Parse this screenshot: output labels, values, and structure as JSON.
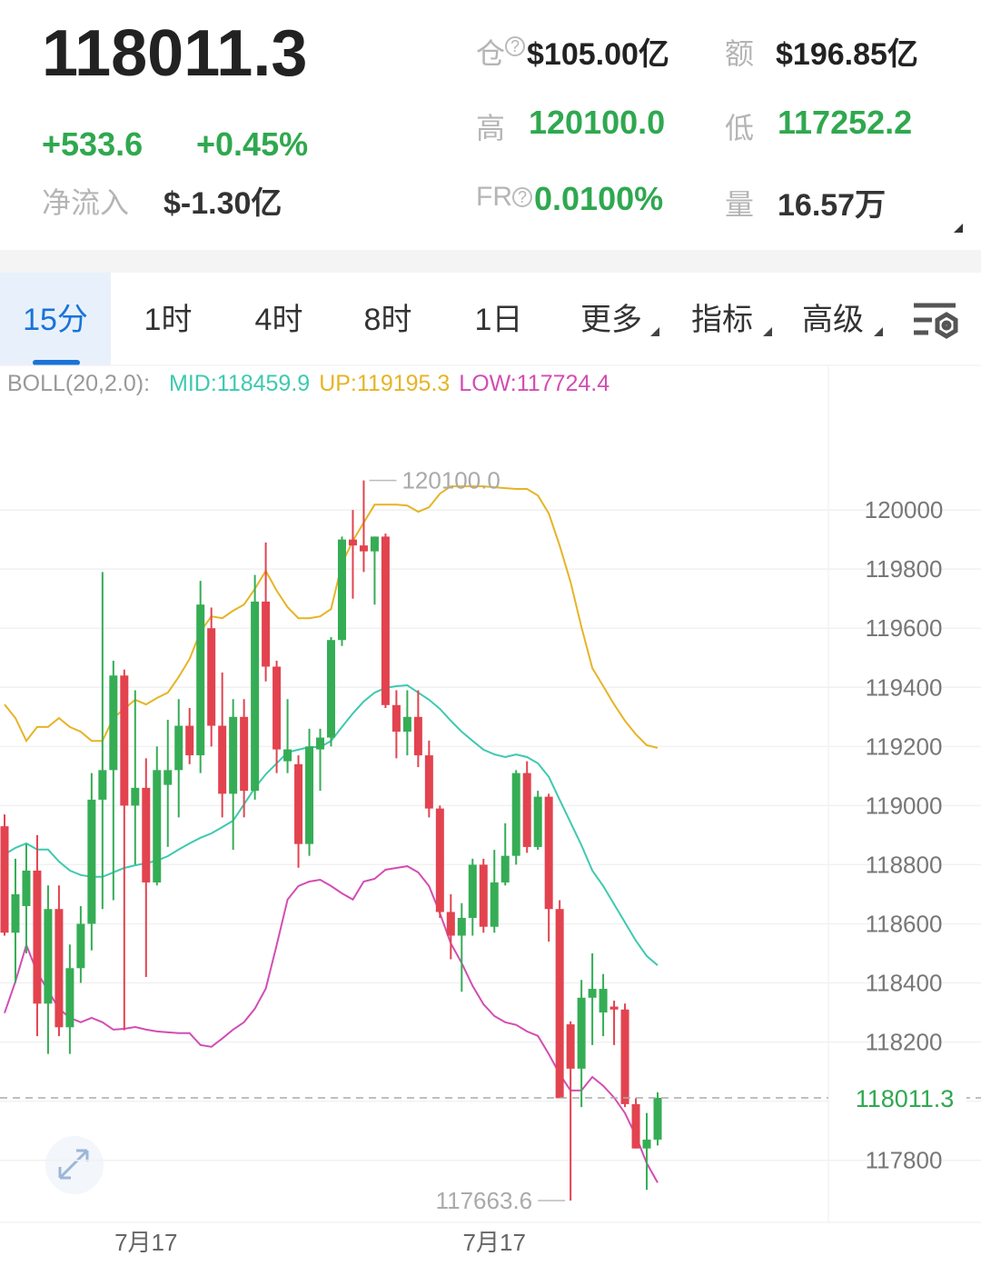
{
  "header": {
    "price": "118011.3",
    "change": "+533.6",
    "change_pct": "+0.45%",
    "inflow_label": "净流入",
    "inflow": "$-1.30亿",
    "stats": [
      {
        "label": "仓",
        "value": "$105.00亿"
      },
      {
        "label": "额",
        "value": "$196.85亿"
      },
      {
        "label": "高",
        "value": "120100.0"
      },
      {
        "label": "低",
        "value": "117252.2"
      },
      {
        "label": "FR",
        "value": "0.0100%"
      },
      {
        "label": "量",
        "value": "16.57万"
      }
    ]
  },
  "tabs": [
    "15分",
    "1时",
    "4时",
    "8时",
    "1日",
    "更多",
    "指标",
    "高级"
  ],
  "chart_data": {
    "type": "candlestick",
    "categories": [
      null,
      null,
      null,
      null,
      null,
      null,
      null,
      null,
      null,
      null,
      null,
      null,
      null,
      "7月17",
      null,
      null,
      null,
      null,
      null,
      null,
      null,
      null,
      null,
      null,
      null,
      null,
      null,
      null,
      null,
      null,
      null,
      null,
      null,
      null,
      null,
      null,
      null,
      null,
      null,
      null,
      null,
      null,
      null,
      null,
      null,
      "7月17",
      null,
      null,
      null,
      null,
      null,
      null,
      null,
      null,
      null,
      null,
      null,
      null,
      null,
      null,
      null
    ],
    "open": [
      118930,
      118570,
      118660,
      118780,
      118330,
      118650,
      118250,
      118450,
      118600,
      119020,
      119120,
      119440,
      119000,
      119060,
      118740,
      119070,
      119120,
      119270,
      119170,
      119600,
      119270,
      119040,
      119300,
      119050,
      119690,
      119470,
      119150,
      119140,
      118870,
      119190,
      119230,
      119560,
      119900,
      119880,
      119860,
      119910,
      119340,
      119250,
      119300,
      119170,
      118990,
      118640,
      118560,
      118620,
      118800,
      118590,
      118740,
      118830,
      119110,
      118860,
      119030,
      118650,
      118260,
      118110,
      118350,
      118300,
      118320,
      118310,
      117990,
      117840,
      117870
    ],
    "high": [
      118970,
      118820,
      118870,
      118900,
      118730,
      118730,
      118530,
      118660,
      119110,
      119790,
      119490,
      119460,
      119390,
      119160,
      119200,
      119290,
      119360,
      119330,
      119760,
      119670,
      119450,
      119360,
      119360,
      119780,
      119890,
      119490,
      119360,
      119170,
      119260,
      119260,
      119570,
      119910,
      120000,
      120100,
      119910,
      119920,
      119390,
      119390,
      119390,
      119220,
      119000,
      118700,
      118670,
      118820,
      118820,
      118850,
      118940,
      119120,
      119150,
      119050,
      119040,
      118680,
      118270,
      118410,
      118500,
      118430,
      118340,
      118330,
      118010,
      117960,
      118030
    ],
    "low": [
      118560,
      118400,
      118500,
      118220,
      118160,
      118220,
      118160,
      118400,
      118510,
      118650,
      118680,
      118240,
      118800,
      118420,
      118730,
      118860,
      118960,
      119140,
      119110,
      119200,
      118960,
      118850,
      118960,
      119020,
      119420,
      119110,
      119110,
      118790,
      118830,
      119050,
      119200,
      119540,
      119700,
      119790,
      119680,
      119330,
      119160,
      119170,
      119130,
      118960,
      118620,
      118480,
      118370,
      118560,
      118570,
      118570,
      118730,
      118800,
      118840,
      118850,
      118540,
      118010,
      117663.6,
      117980,
      118190,
      118220,
      118190,
      117980,
      117840,
      117700,
      117850
    ],
    "close": [
      118570,
      118700,
      118780,
      118330,
      118650,
      118250,
      118450,
      118600,
      119020,
      119120,
      119440,
      119000,
      119060,
      118740,
      119120,
      119120,
      119270,
      119170,
      119680,
      119270,
      119040,
      119300,
      119050,
      119690,
      119470,
      119190,
      119190,
      118870,
      119200,
      119230,
      119560,
      119900,
      119880,
      119860,
      119910,
      119340,
      119250,
      119300,
      119170,
      118990,
      118640,
      118560,
      118620,
      118800,
      118590,
      118740,
      118830,
      119110,
      118860,
      119030,
      118650,
      118010,
      118110,
      118350,
      118380,
      118380,
      118310,
      117990,
      117840,
      117870,
      118011.3
    ],
    "up_color": "#35ad55",
    "down_color": "#e2434f",
    "ylim": [
      117590,
      120480
    ],
    "yticks": [
      117800,
      118000,
      118200,
      118400,
      118600,
      118800,
      119000,
      119200,
      119400,
      119600,
      119800,
      120000
    ],
    "shown_yticks": [
      117800,
      118200,
      118400,
      118600,
      118800,
      119000,
      119200,
      119400,
      119600,
      119800,
      120000
    ],
    "grid": true,
    "last_price": 118011.3,
    "high_annotation": {
      "value": 120100,
      "label": "120100.0"
    },
    "low_annotation": 117663.6,
    "boll": {
      "label": "BOLL(20,2.0):",
      "legend": [
        "MID:118459.9",
        "UP:119195.3",
        "LOW:117724.4"
      ],
      "series": [
        {
          "name": "MID",
          "color": "#3ec9b0",
          "values": [
            118835,
            118857,
            118872,
            118851,
            118851,
            118811,
            118780,
            118765,
            118759,
            118759,
            118774,
            118789,
            118798,
            118805,
            118814,
            118829,
            118851,
            118872,
            118891,
            118906,
            118927,
            118949,
            119004,
            119060,
            119106,
            119143,
            119180,
            119189,
            119198,
            119198,
            119219,
            119266,
            119312,
            119352,
            119382,
            119398,
            119404,
            119407,
            119382,
            119358,
            119327,
            119287,
            119250,
            119219,
            119189,
            119173,
            119164,
            119173,
            119164,
            119143,
            119097,
            119020,
            118943,
            118866,
            118780,
            118728,
            118666,
            118605,
            118543,
            118491,
            118459.9
          ]
        },
        {
          "name": "UP",
          "color": "#e6b425",
          "values": [
            119342,
            119296,
            119219,
            119266,
            119266,
            119296,
            119266,
            119250,
            119219,
            119219,
            119296,
            119327,
            119358,
            119342,
            119364,
            119382,
            119435,
            119496,
            119588,
            119640,
            119634,
            119659,
            119680,
            119733,
            119794,
            119727,
            119671,
            119634,
            119634,
            119640,
            119665,
            119819,
            119896,
            119957,
            120018,
            120018,
            120018,
            120015,
            119994,
            120009,
            120055,
            120080,
            120080,
            120080,
            120080,
            120077,
            120074,
            120071,
            120071,
            120049,
            119988,
            119880,
            119757,
            119604,
            119465,
            119404,
            119342,
            119287,
            119241,
            119204,
            119195.3
          ]
        },
        {
          "name": "LOW",
          "color": "#d24db3",
          "values": [
            118298,
            118405,
            118528,
            118436,
            118374,
            118313,
            118282,
            118267,
            118282,
            118267,
            118242,
            118245,
            118251,
            118242,
            118236,
            118233,
            118230,
            118230,
            118190,
            118184,
            118212,
            118242,
            118267,
            118313,
            118381,
            118528,
            118682,
            118728,
            118743,
            118749,
            118728,
            118703,
            118682,
            118743,
            118752,
            118783,
            118789,
            118795,
            118774,
            118728,
            118636,
            118534,
            118467,
            118390,
            118328,
            118288,
            118267,
            118258,
            118236,
            118221,
            118159,
            118092,
            118036,
            118036,
            118082,
            118052,
            118012,
            117960,
            117883,
            117790,
            117724.4
          ]
        }
      ]
    }
  }
}
